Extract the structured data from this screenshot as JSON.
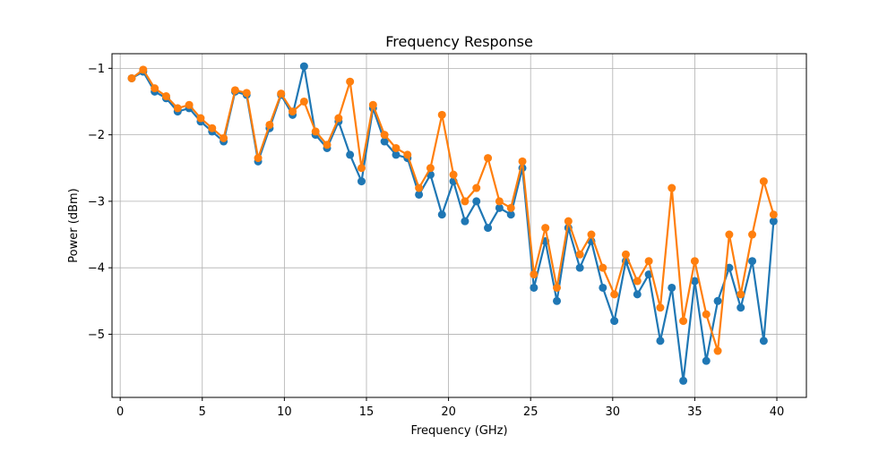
{
  "colors": {
    "series_1": "#1f77b4",
    "series_2": "#ff7f0e",
    "grid": "#b0b0b0",
    "axes": "#000000"
  },
  "chart_data": {
    "type": "line",
    "title": "Frequency Response",
    "xlabel": "Frequency (GHz)",
    "ylabel": "Power (dBm)",
    "xlim": [
      -0.5,
      41.8
    ],
    "ylim": [
      -5.95,
      -0.78
    ],
    "xticks": [
      0,
      5,
      10,
      15,
      20,
      25,
      30,
      35,
      40
    ],
    "yticks": [
      -1,
      -2,
      -3,
      -4,
      -5
    ],
    "xtick_labels": [
      "0",
      "5",
      "10",
      "15",
      "20",
      "25",
      "30",
      "35",
      "40"
    ],
    "ytick_labels": [
      "−1",
      "−2",
      "−3",
      "−4",
      "−5"
    ],
    "grid": true,
    "legend": "none",
    "markers": true,
    "x": [
      0.7,
      1.4,
      2.1,
      2.8,
      3.5,
      4.2,
      4.9,
      5.6,
      6.3,
      7.0,
      7.7,
      8.4,
      9.1,
      9.8,
      10.5,
      11.2,
      11.9,
      12.6,
      13.3,
      14.0,
      14.7,
      15.4,
      16.1,
      16.8,
      17.5,
      18.2,
      18.9,
      19.6,
      20.3,
      21.0,
      21.7,
      22.4,
      23.1,
      23.8,
      24.5,
      25.2,
      25.9,
      26.6,
      27.3,
      28.0,
      28.7,
      29.4,
      30.1,
      30.8,
      31.5,
      32.2,
      32.9,
      33.6,
      34.3,
      35.0,
      35.7,
      36.4,
      37.1,
      37.8,
      38.5,
      39.2,
      39.8
    ],
    "series": [
      {
        "values": [
          -1.15,
          -1.05,
          -1.35,
          -1.45,
          -1.65,
          -1.6,
          -1.8,
          -1.95,
          -2.1,
          -1.35,
          -1.4,
          -2.4,
          -1.9,
          -1.4,
          -1.7,
          -0.97,
          -2.0,
          -2.2,
          -1.8,
          -2.3,
          -2.7,
          -1.6,
          -2.1,
          -2.3,
          -2.35,
          -2.9,
          -2.6,
          -3.2,
          -2.7,
          -3.3,
          -3.0,
          -3.4,
          -3.1,
          -3.2,
          -2.5,
          -4.3,
          -3.6,
          -4.5,
          -3.4,
          -4.0,
          -3.6,
          -4.3,
          -4.8,
          -3.9,
          -4.4,
          -4.1,
          -5.1,
          -4.3,
          -5.7,
          -4.2,
          -5.4,
          -4.5,
          -4.0,
          -4.6,
          -3.9,
          -5.1,
          -3.3
        ]
      },
      {
        "values": [
          -1.15,
          -1.02,
          -1.3,
          -1.42,
          -1.6,
          -1.55,
          -1.75,
          -1.9,
          -2.05,
          -1.33,
          -1.37,
          -2.35,
          -1.85,
          -1.38,
          -1.65,
          -1.5,
          -1.95,
          -2.15,
          -1.75,
          -1.2,
          -2.5,
          -1.55,
          -2.0,
          -2.2,
          -2.3,
          -2.8,
          -2.5,
          -1.7,
          -2.6,
          -3.0,
          -2.8,
          -2.35,
          -3.0,
          -3.1,
          -2.4,
          -4.1,
          -3.4,
          -4.3,
          -3.3,
          -3.8,
          -3.5,
          -4.0,
          -4.4,
          -3.8,
          -4.2,
          -3.9,
          -4.6,
          -2.8,
          -4.8,
          -3.9,
          -4.7,
          -5.25,
          -3.5,
          -4.4,
          -3.5,
          -2.7,
          -3.2
        ]
      }
    ]
  }
}
